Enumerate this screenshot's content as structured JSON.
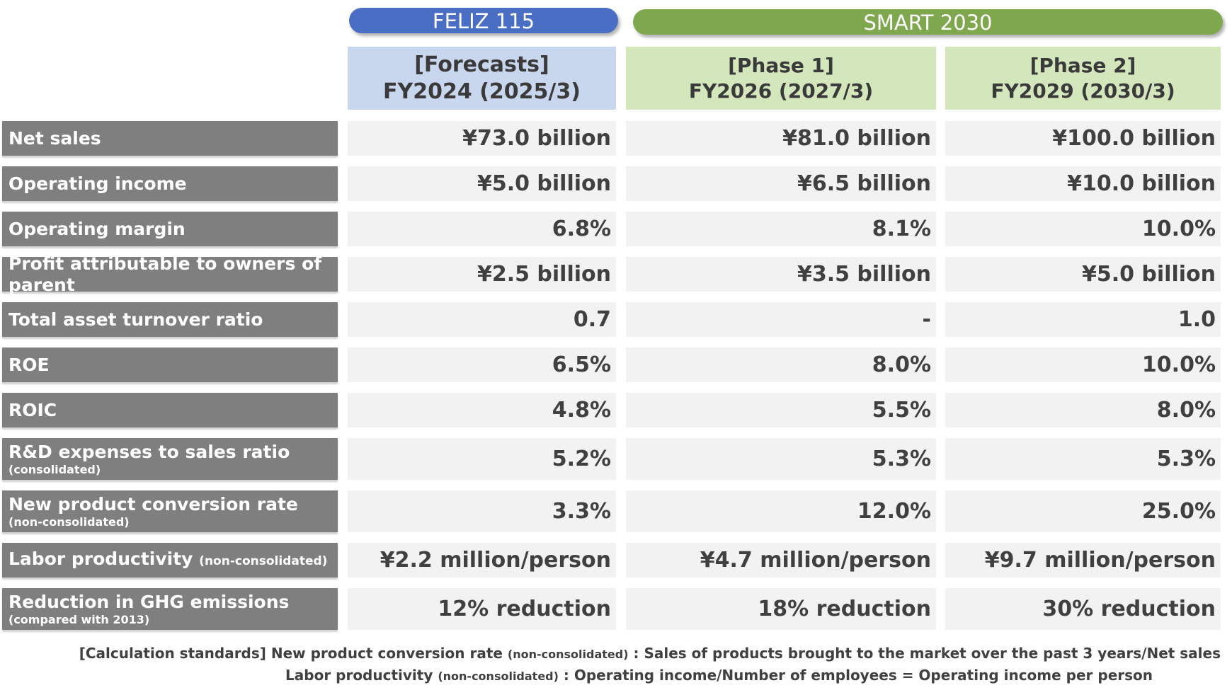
{
  "banners": {
    "feliz": "FELIZ 115",
    "smart": "SMART 2030"
  },
  "columns": [
    {
      "line1": "[Forecasts]",
      "line2": "FY2024 (2025/3)"
    },
    {
      "line1": "[Phase 1]",
      "line2": "FY2026 (2027/3)"
    },
    {
      "line1": "[Phase 2]",
      "line2": "FY2029 (2030/3)"
    }
  ],
  "rows": [
    {
      "label": "Net sales",
      "sub": "",
      "inline_note": "",
      "values": [
        "¥73.0 billion",
        "¥81.0 billion",
        "¥100.0 billion"
      ]
    },
    {
      "label": "Operating income",
      "sub": "",
      "inline_note": "",
      "values": [
        "¥5.0 billion",
        "¥6.5 billion",
        "¥10.0 billion"
      ]
    },
    {
      "label": "Operating margin",
      "sub": "",
      "inline_note": "",
      "values": [
        "6.8%",
        "8.1%",
        "10.0%"
      ]
    },
    {
      "label": "Profit attributable to owners of parent",
      "sub": "",
      "inline_note": "",
      "values": [
        "¥2.5 billion",
        "¥3.5 billion",
        "¥5.0 billion"
      ]
    },
    {
      "label": "Total asset turnover ratio",
      "sub": "",
      "inline_note": "",
      "values": [
        "0.7",
        "-",
        "1.0"
      ]
    },
    {
      "label": "ROE",
      "sub": "",
      "inline_note": "",
      "values": [
        "6.5%",
        "8.0%",
        "10.0%"
      ]
    },
    {
      "label": "ROIC",
      "sub": "",
      "inline_note": "",
      "values": [
        "4.8%",
        "5.5%",
        "8.0%"
      ]
    },
    {
      "label": "R&D expenses to sales ratio",
      "sub": "(consolidated)",
      "inline_note": "",
      "values": [
        "5.2%",
        "5.3%",
        "5.3%"
      ]
    },
    {
      "label": "New product conversion rate",
      "sub": "(non-consolidated)",
      "inline_note": "",
      "values": [
        "3.3%",
        "12.0%",
        "25.0%"
      ]
    },
    {
      "label": "Labor productivity",
      "sub": "",
      "inline_note": "(non-consolidated)",
      "values": [
        "¥2.2 million/person",
        "¥4.7 million/person",
        "¥9.7 million/person"
      ]
    },
    {
      "label": "Reduction in GHG emissions",
      "sub": "(compared with 2013)",
      "inline_note": "",
      "values": [
        "12% reduction",
        "18% reduction",
        "30% reduction"
      ]
    }
  ],
  "notes": {
    "line1_a": "[Calculation standards] New product conversion rate ",
    "line1_small": "(non-consolidated)",
    "line1_b": " : Sales of products brought to the market over the past 3 years/Net sales",
    "line2_a": "Labor productivity ",
    "line2_small": "(non-consolidated)",
    "line2_b": " : Operating income/Number of employees = Operating income per person"
  },
  "colors": {
    "feliz_banner": "#4a6ec3",
    "smart_banner": "#7fa84e",
    "forecast_header": "#c8d6ee",
    "phase_header": "#d3e6bc",
    "label_bg": "#7f7f7f",
    "cell_bg": "#f2f2f2"
  }
}
